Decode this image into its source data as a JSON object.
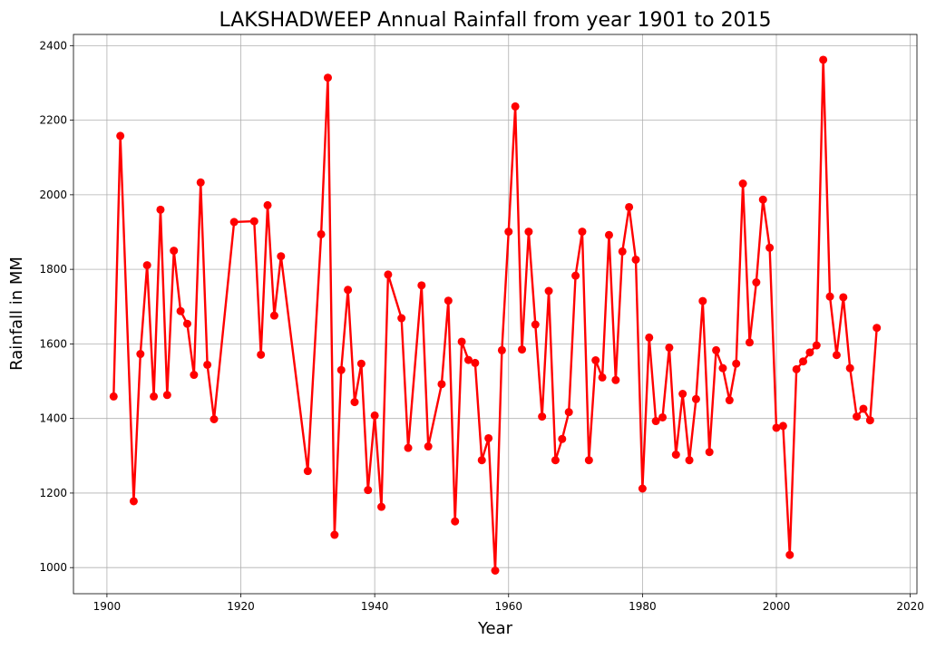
{
  "chart_data": {
    "type": "line",
    "title": "LAKSHADWEEP Annual Rainfall from year 1901 to 2015",
    "xlabel": "Year",
    "ylabel": "Rainfall in MM",
    "xlim": [
      1895,
      2021
    ],
    "ylim": [
      930,
      2430
    ],
    "x_ticks": [
      1900,
      1920,
      1940,
      1960,
      1980,
      2000,
      2020
    ],
    "y_ticks": [
      1000,
      1200,
      1400,
      1600,
      1800,
      2000,
      2200,
      2400
    ],
    "grid": true,
    "marker": "circle",
    "series": [
      {
        "color": "#ff0000",
        "x": [
          1901,
          1902,
          1904,
          1905,
          1906,
          1907,
          1908,
          1909,
          1910,
          1911,
          1912,
          1913,
          1914,
          1915,
          1916,
          1919,
          1922,
          1923,
          1924,
          1925,
          1926,
          1930,
          1932,
          1933,
          1934,
          1935,
          1936,
          1937,
          1938,
          1939,
          1940,
          1941,
          1942,
          1944,
          1945,
          1947,
          1948,
          1950,
          1951,
          1952,
          1953,
          1954,
          1955,
          1956,
          1957,
          1958,
          1959,
          1960,
          1961,
          1962,
          1963,
          1964,
          1965,
          1966,
          1967,
          1968,
          1969,
          1970,
          1971,
          1972,
          1973,
          1974,
          1975,
          1976,
          1977,
          1978,
          1979,
          1980,
          1981,
          1982,
          1983,
          1984,
          1985,
          1986,
          1987,
          1988,
          1989,
          1990,
          1991,
          1992,
          1993,
          1994,
          1995,
          1996,
          1997,
          1998,
          1999,
          2000,
          2001,
          2002,
          2003,
          2004,
          2005,
          2006,
          2007,
          2008,
          2009,
          2010,
          2011,
          2012,
          2013,
          2014,
          2015
        ],
        "y": [
          1459,
          2158,
          1178,
          1573,
          1811,
          1459,
          1960,
          1463,
          1850,
          1688,
          1654,
          1517,
          2033,
          1544,
          1398,
          1927,
          1929,
          1571,
          1972,
          1676,
          1835,
          1259,
          1894,
          2314,
          1088,
          1530,
          1745,
          1444,
          1547,
          1208,
          1408,
          1163,
          1786,
          1669,
          1321,
          1757,
          1325,
          1492,
          1716,
          1124,
          1606,
          1557,
          1549,
          1288,
          1347,
          992,
          1583,
          1901,
          2237,
          1585,
          1901,
          1652,
          1405,
          1742,
          1288,
          1345,
          1417,
          1783,
          1901,
          1288,
          1556,
          1510,
          1892,
          1503,
          1848,
          1967,
          1826,
          1212,
          1617,
          1393,
          1403,
          1590,
          1303,
          1466,
          1288,
          1452,
          1715,
          1310,
          1583,
          1535,
          1449,
          1547,
          2030,
          1604,
          1765,
          1987,
          1858,
          1375,
          1380,
          1034,
          1532,
          1553,
          1577,
          1596,
          2362,
          1727,
          1570,
          1725,
          1535,
          1405,
          1426,
          1395,
          1643
        ]
      }
    ]
  }
}
